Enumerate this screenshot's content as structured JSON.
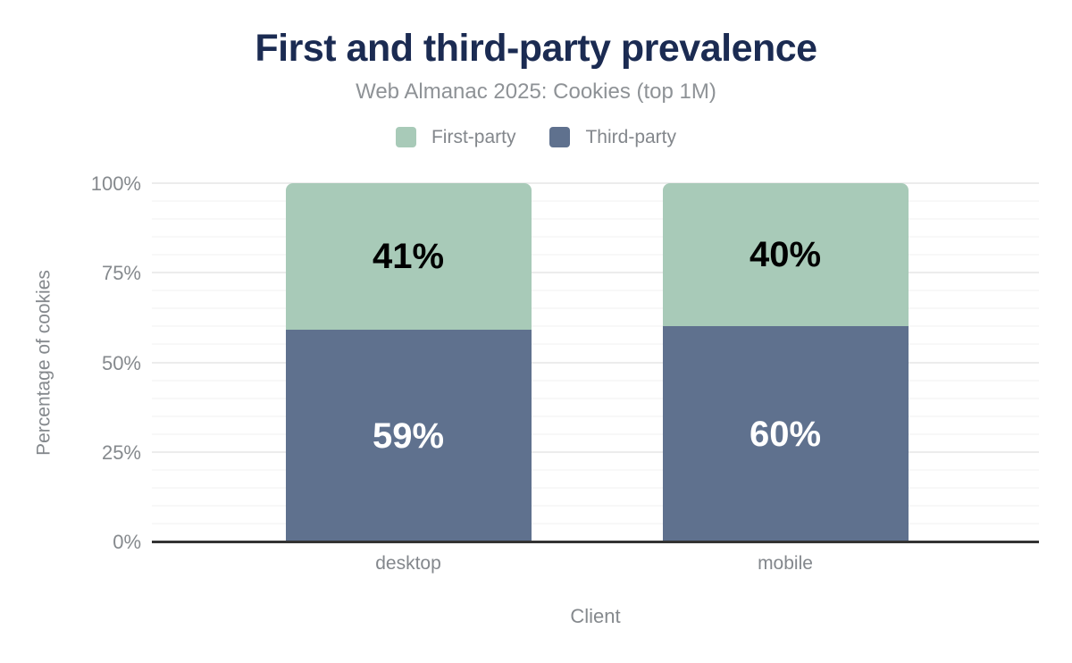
{
  "title": "First and third-party prevalence",
  "subtitle": "Web Almanac 2025: Cookies (top 1M)",
  "legend": [
    {
      "label": "First-party",
      "color": "#a8cab8"
    },
    {
      "label": "Third-party",
      "color": "#5f718e"
    }
  ],
  "chart_data": {
    "type": "bar",
    "stacked": true,
    "title": "First and third-party prevalence",
    "subtitle": "Web Almanac 2025: Cookies (top 1M)",
    "categories": [
      "desktop",
      "mobile"
    ],
    "series": [
      {
        "name": "First-party",
        "values": [
          41,
          40
        ],
        "labels": [
          "41%",
          "40%"
        ],
        "color": "#a8cab8",
        "label_color": "#000000"
      },
      {
        "name": "Third-party",
        "values": [
          59,
          60
        ],
        "labels": [
          "59%",
          "60%"
        ],
        "color": "#5f718e",
        "label_color": "#ffffff"
      }
    ],
    "stack_order_bottom_to_top": [
      "Third-party",
      "First-party"
    ],
    "xlabel": "Client",
    "ylabel": "Percentage of cookies",
    "ylim": [
      0,
      100
    ],
    "yticks": [
      {
        "value": 0,
        "label": "0%"
      },
      {
        "value": 25,
        "label": "25%"
      },
      {
        "value": 50,
        "label": "50%"
      },
      {
        "value": 75,
        "label": "75%"
      },
      {
        "value": 100,
        "label": "100%"
      }
    ],
    "minor_grid_step_pct": 5,
    "grid": true,
    "legend_position": "top"
  },
  "colors": {
    "title_text": "#1b2b52",
    "subtitle_text": "#8e9296",
    "muted_text": "#85898d",
    "axis_line": "#333333",
    "major_grid": "#ececec",
    "minor_grid": "#f8f8f8",
    "first_party": "#a8cab8",
    "third_party": "#5f718e",
    "background": "#ffffff"
  }
}
